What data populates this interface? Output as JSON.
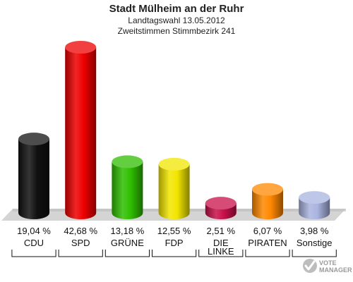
{
  "chart_data": {
    "type": "bar",
    "title": "Stadt Mülheim an der Ruhr",
    "subtitle_lines": [
      "Landtagswahl 13.05.2012",
      "Zweitstimmen Stimmbezirk 241"
    ],
    "categories": [
      [
        "CDU"
      ],
      [
        "SPD"
      ],
      [
        "GRÜNE"
      ],
      [
        "FDP"
      ],
      [
        "DIE",
        "LINKE"
      ],
      [
        "PIRATEN"
      ],
      [
        "Sonstige"
      ]
    ],
    "values": [
      19.04,
      42.68,
      13.18,
      12.55,
      2.51,
      6.07,
      3.98
    ],
    "value_labels": [
      "19,04 %",
      "42,68 %",
      "13,18 %",
      "12,55 %",
      "2,51 %",
      "6,07 %",
      "3,98 %"
    ],
    "colors": [
      "#111111",
      "#ee0000",
      "#2fbf00",
      "#f2e600",
      "#c8104a",
      "#ff8800",
      "#a9b4e0"
    ],
    "ylim": [
      0,
      42.68
    ]
  },
  "logo": {
    "line1": "VOTE",
    "line2": "MANAGER"
  }
}
